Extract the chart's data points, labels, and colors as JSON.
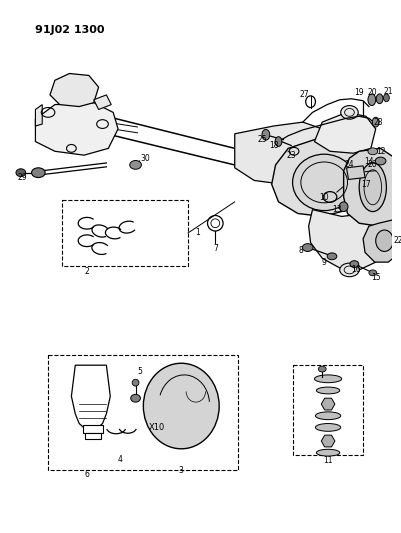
{
  "title": "91J02 1300",
  "bg_color": "#ffffff",
  "line_color": "#000000",
  "fig_width": 4.02,
  "fig_height": 5.33,
  "dpi": 100
}
